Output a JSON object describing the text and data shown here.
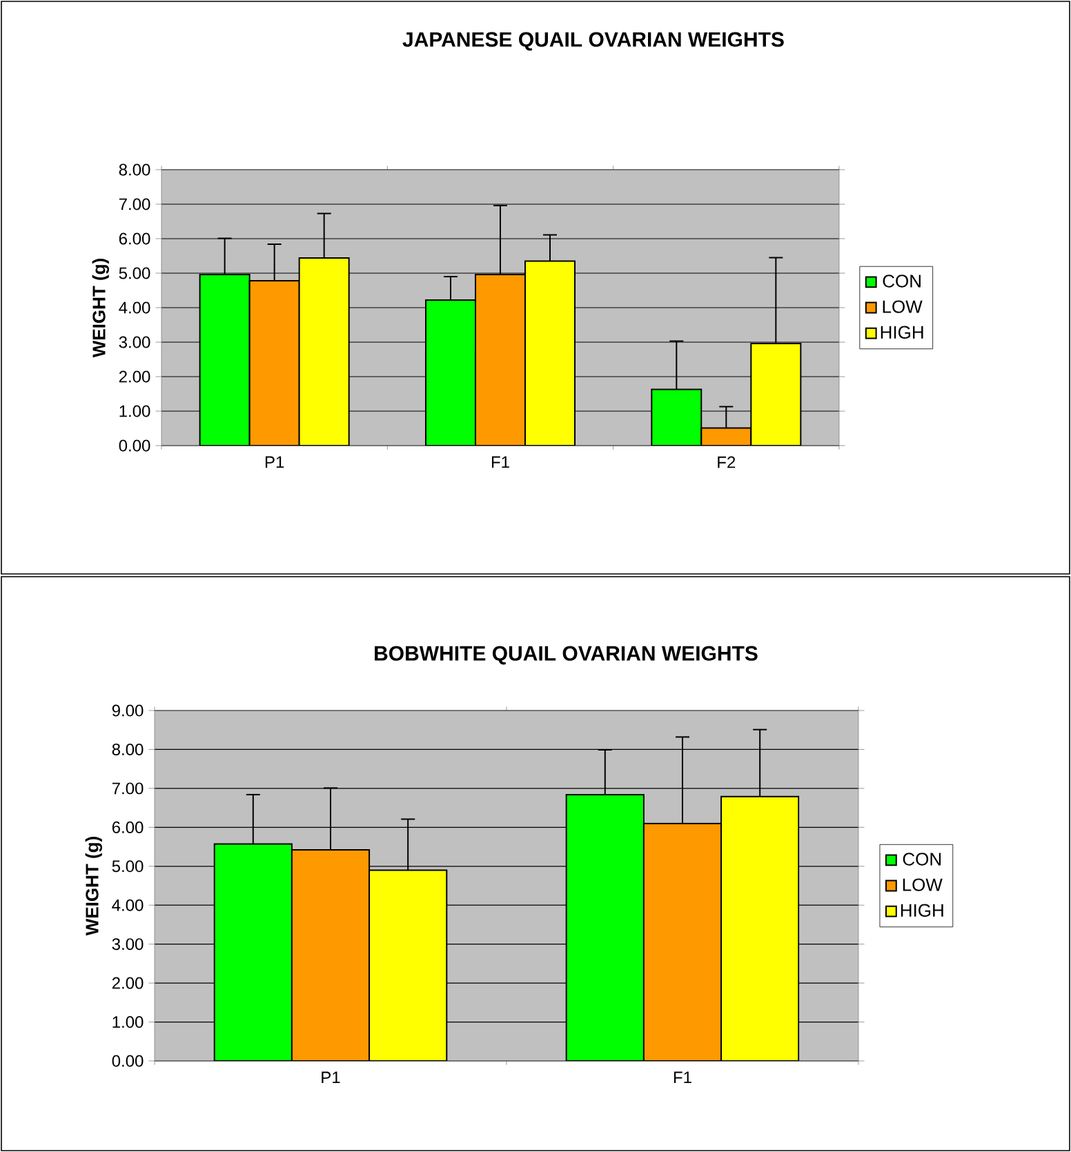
{
  "chart_data": [
    {
      "type": "bar",
      "title": "JAPANESE QUAIL OVARIAN WEIGHTS",
      "ylabel": "WEIGHT (g)",
      "categories": [
        "P1",
        "F1",
        "F2"
      ],
      "series": [
        {
          "name": "CON",
          "color": "#00ff00",
          "values": [
            4.96,
            4.22,
            1.63
          ],
          "errors": [
            [
              4.96,
              6.01
            ],
            [
              4.22,
              4.9
            ],
            [
              1.63,
              3.03
            ]
          ]
        },
        {
          "name": "LOW",
          "color": "#ff9900",
          "values": [
            4.78,
            4.96,
            0.51
          ],
          "errors": [
            [
              4.78,
              5.84
            ],
            [
              4.96,
              6.96
            ],
            [
              0.51,
              1.13
            ]
          ]
        },
        {
          "name": "HIGH",
          "color": "#ffff00",
          "values": [
            5.44,
            5.35,
            2.96
          ],
          "errors": [
            [
              5.44,
              6.73
            ],
            [
              5.35,
              6.11
            ],
            [
              2.96,
              5.45
            ]
          ]
        }
      ],
      "ylim": [
        0,
        8
      ],
      "yticks": [
        {
          "value": 0,
          "label": "0.00"
        },
        {
          "value": 1,
          "label": "1.00"
        },
        {
          "value": 2,
          "label": "2.00"
        },
        {
          "value": 3,
          "label": "3.00"
        },
        {
          "value": 4,
          "label": "4.00"
        },
        {
          "value": 5,
          "label": "5.00"
        },
        {
          "value": 6,
          "label": "6.00"
        },
        {
          "value": 7,
          "label": "7.00"
        },
        {
          "value": 8,
          "label": "8.00"
        }
      ],
      "grid": "y",
      "legend": "right"
    },
    {
      "type": "bar",
      "title": "BOBWHITE QUAIL OVARIAN WEIGHTS",
      "ylabel": "WEIGHT (g)",
      "categories": [
        "P1",
        "F1"
      ],
      "series": [
        {
          "name": "CON",
          "color": "#00ff00",
          "values": [
            5.57,
            6.84
          ],
          "errors": [
            [
              5.57,
              6.84
            ],
            [
              6.84,
              7.99
            ]
          ]
        },
        {
          "name": "LOW",
          "color": "#ff9900",
          "values": [
            5.42,
            6.1
          ],
          "errors": [
            [
              5.42,
              7.01
            ],
            [
              6.1,
              8.32
            ]
          ]
        },
        {
          "name": "HIGH",
          "color": "#ffff00",
          "values": [
            4.9,
            6.79
          ],
          "errors": [
            [
              4.9,
              6.21
            ],
            [
              6.79,
              8.51
            ]
          ]
        }
      ],
      "ylim": [
        0,
        9
      ],
      "yticks": [
        {
          "value": 0,
          "label": "0.00"
        },
        {
          "value": 1,
          "label": "1.00"
        },
        {
          "value": 2,
          "label": "2.00"
        },
        {
          "value": 3,
          "label": "3.00"
        },
        {
          "value": 4,
          "label": "4.00"
        },
        {
          "value": 5,
          "label": "5.00"
        },
        {
          "value": 6,
          "label": "6.00"
        },
        {
          "value": 7,
          "label": "7.00"
        },
        {
          "value": 8,
          "label": "8.00"
        },
        {
          "value": 9,
          "label": "9.00"
        }
      ],
      "grid": "y",
      "legend": "right"
    }
  ]
}
